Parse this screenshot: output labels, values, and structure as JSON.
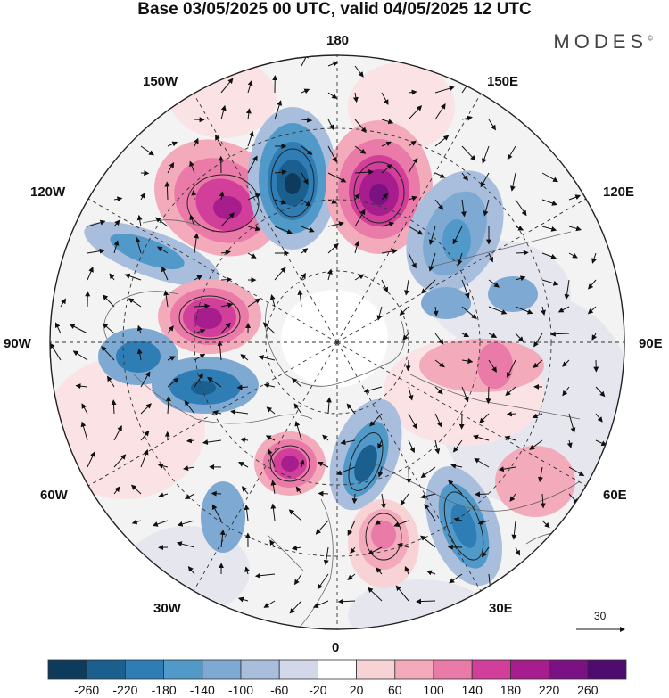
{
  "title": "Base 03/05/2025 00 UTC, valid 04/05/2025 12 UTC",
  "brand": {
    "name": "MODES",
    "mark": "©"
  },
  "longitude_labels": {
    "lon_180": "180",
    "lon_150e": "150E",
    "lon_120e": "120E",
    "lon_90e": "90E",
    "lon_60e": "60E",
    "lon_30e": "30E",
    "lon_0": "0",
    "lon_30w": "30W",
    "lon_60w": "60W",
    "lon_90w": "90W",
    "lon_120w": "120W",
    "lon_150w": "150W"
  },
  "vector_scale": {
    "value": "30"
  },
  "colorbar": {
    "ticks": [
      "-260",
      "-220",
      "-180",
      "-140",
      "-100",
      "-60",
      "-20",
      "20",
      "60",
      "100",
      "140",
      "180",
      "220",
      "260"
    ],
    "colors": [
      "#0e3a5c",
      "#1b5f8f",
      "#2f7db5",
      "#5199c8",
      "#7ea9d2",
      "#a9bddd",
      "#d3d7ea",
      "#ffffff",
      "#f7d3d6",
      "#f3aabb",
      "#ea7aa7",
      "#d23f9b",
      "#a81d8d",
      "#7a1283",
      "#4f0b6d"
    ]
  },
  "map": {
    "projection": "north polar stereographic",
    "anomaly_field": "shaded",
    "vectors": "wind arrows"
  }
}
